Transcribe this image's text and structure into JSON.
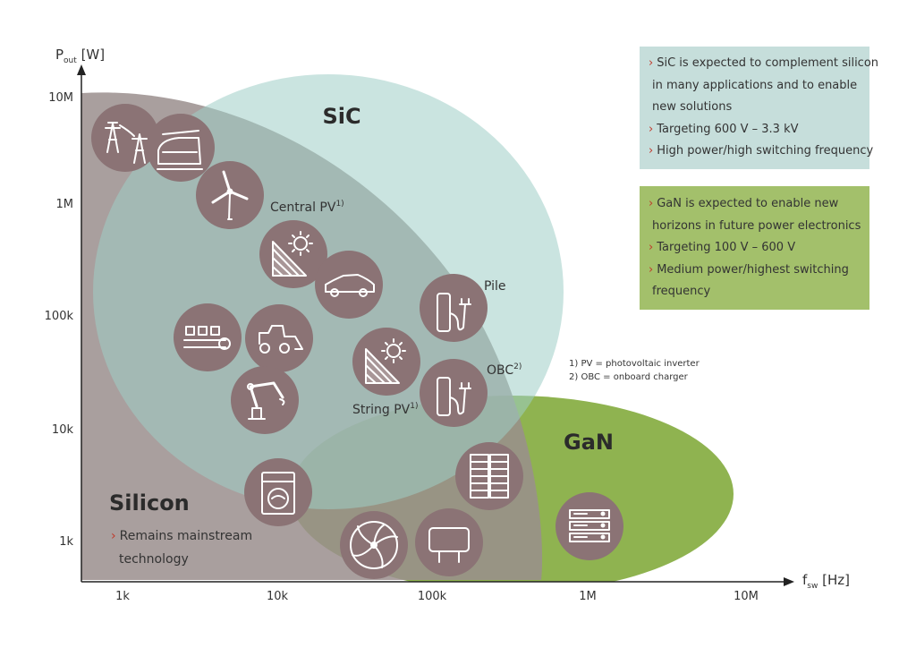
{
  "axes": {
    "y_label_main": "P",
    "y_label_sub": "out",
    "y_label_unit": " [W]",
    "x_label_main": "f",
    "x_label_sub": "sw",
    "x_label_unit": " [Hz]",
    "y_ticks": [
      "10M",
      "1M",
      "100k",
      "10k",
      "1k"
    ],
    "x_ticks": [
      "1k",
      "10k",
      "100k",
      "1M",
      "10M"
    ]
  },
  "regions": {
    "sic": "SiC",
    "gan": "GaN",
    "silicon": "Silicon"
  },
  "colors": {
    "silicon_fill": "#9a8e8d",
    "sic_fill": "#9fcdc7",
    "gan_fill": "#8fb350",
    "icon_fill": "#8b7375",
    "sic_box": "#c6dedb",
    "gan_box": "#a3c06b",
    "bullet": "#c0392b"
  },
  "sic_box": {
    "lines": [
      {
        "bullet": "›",
        "text": "SiC is expected to complement silicon"
      },
      {
        "bullet": "",
        "text": "in many applications and to enable"
      },
      {
        "bullet": "",
        "text": "new solutions"
      },
      {
        "bullet": "›",
        "text": "Targeting 600 V – 3.3 kV"
      },
      {
        "bullet": "›",
        "text": "High power/high switching frequency"
      }
    ]
  },
  "gan_box": {
    "lines": [
      {
        "bullet": "›",
        "text": "GaN is expected to enable new"
      },
      {
        "bullet": "",
        "text": "horizons in future power electronics"
      },
      {
        "bullet": "›",
        "text": "Targeting 100 V – 600 V"
      },
      {
        "bullet": "›",
        "text": "Medium power/highest switching"
      },
      {
        "bullet": "",
        "text": "frequency"
      }
    ]
  },
  "silicon_text": {
    "line1": "Remains mainstream",
    "line2": "technology",
    "bullet": "›"
  },
  "labels": {
    "central_pv": "Central PV",
    "central_pv_sup": "1)",
    "pile": "Pile",
    "obc": "OBC",
    "obc_sup": "2)",
    "string_pv": "String PV",
    "string_pv_sup": "1)"
  },
  "notes": {
    "note1": "1) PV = photovoltaic inverter",
    "note2": "2) OBC = onboard charger"
  },
  "icons": [
    {
      "name": "power-grid-icon"
    },
    {
      "name": "train-icon"
    },
    {
      "name": "wind-turbine-icon"
    },
    {
      "name": "solar-panel-icon"
    },
    {
      "name": "electric-car-icon"
    },
    {
      "name": "conveyor-icon"
    },
    {
      "name": "loader-icon"
    },
    {
      "name": "robot-arm-icon"
    },
    {
      "name": "charging-pile-icon"
    },
    {
      "name": "solar-panel-string-icon"
    },
    {
      "name": "onboard-charger-icon"
    },
    {
      "name": "washing-machine-icon"
    },
    {
      "name": "fan-icon"
    },
    {
      "name": "power-adapter-icon"
    },
    {
      "name": "data-center-icon"
    },
    {
      "name": "server-rack-icon"
    }
  ]
}
